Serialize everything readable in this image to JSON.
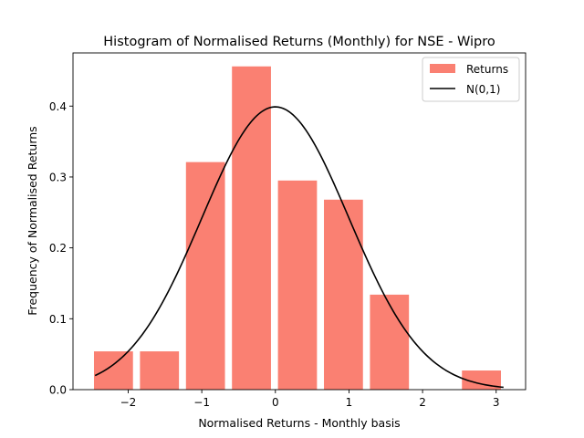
{
  "chart_data": {
    "type": "bar",
    "title": "Histogram of Normalised Returns (Monthly) for NSE - Wipro",
    "xlabel": "Normalised Returns - Monthly basis",
    "ylabel": "Frequency of Normalised Returns",
    "xlim": [
      -2.75,
      3.4
    ],
    "ylim": [
      0,
      0.475
    ],
    "x_ticks": [
      -2,
      -1,
      0,
      1,
      2,
      3
    ],
    "y_ticks": [
      0.0,
      0.1,
      0.2,
      0.3,
      0.4
    ],
    "grid": false,
    "legend_position": "top-right",
    "bar_color": "#fa8072",
    "line_color": "#000000",
    "bars": {
      "name": "Returns",
      "bin_centers": [
        -2.2,
        -1.575,
        -0.95,
        -0.325,
        0.3,
        0.925,
        1.55,
        2.175,
        2.8
      ],
      "bar_width": 0.53,
      "values": [
        0.054,
        0.054,
        0.321,
        0.456,
        0.295,
        0.268,
        0.134,
        0.0,
        0.027
      ]
    },
    "curve": {
      "name": "N(0,1)",
      "x_min": -2.45,
      "x_max": 3.1,
      "function": "standard normal pdf"
    }
  }
}
